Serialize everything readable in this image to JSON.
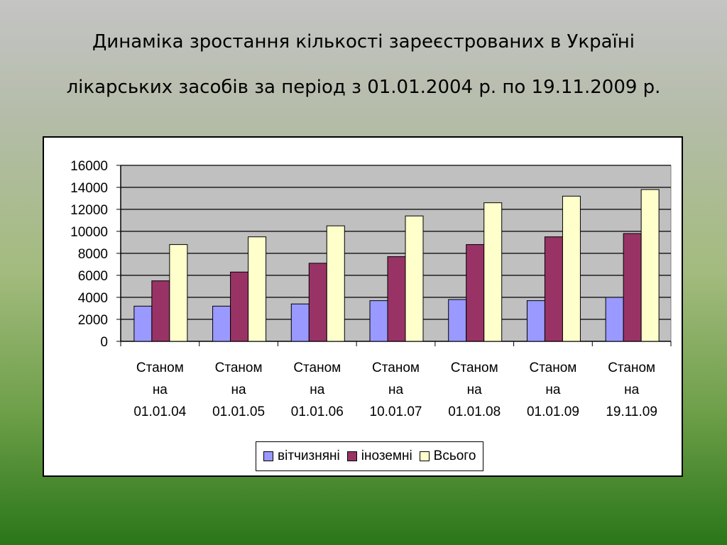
{
  "slide": {
    "title_line1": "Динаміка зростання кількості зареєстрованих в Україні",
    "title_line2": "лікарських засобів за період з 01.01.2004 р. по 19.11.2009 р."
  },
  "chart_data": {
    "type": "bar",
    "categories": [
      [
        "Станом",
        "на",
        "01.01.04"
      ],
      [
        "Станом",
        "на",
        "01.01.05"
      ],
      [
        "Станом",
        "на",
        "01.01.06"
      ],
      [
        "Станом",
        "на",
        "10.01.07"
      ],
      [
        "Станом",
        "на",
        "01.01.08"
      ],
      [
        "Станом",
        "на",
        "01.01.09"
      ],
      [
        "Станом",
        "на",
        "19.11.09"
      ]
    ],
    "series": [
      {
        "name": "вітчизняні",
        "color": "#9999ff",
        "values": [
          3200,
          3200,
          3400,
          3700,
          3800,
          3700,
          4000
        ]
      },
      {
        "name": "іноземні",
        "color": "#993366",
        "values": [
          5500,
          6300,
          7100,
          7700,
          8800,
          9500,
          9800
        ]
      },
      {
        "name": "Всього",
        "color": "#ffffcc",
        "values": [
          8800,
          9500,
          10500,
          11400,
          12600,
          13200,
          13800
        ]
      }
    ],
    "ylim": [
      0,
      16000
    ],
    "yticks": [
      "0",
      "2000",
      "4000",
      "6000",
      "8000",
      "10000",
      "12000",
      "14000",
      "16000"
    ],
    "plot_background": "#c0c0c0",
    "grid": true,
    "legend_position": "bottom"
  }
}
